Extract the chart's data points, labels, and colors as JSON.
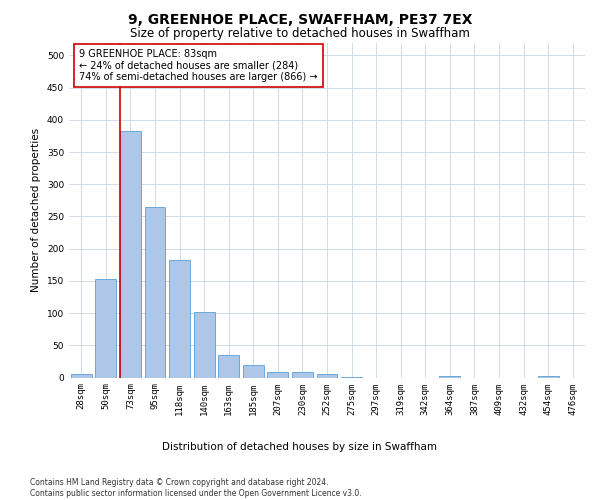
{
  "title": "9, GREENHOE PLACE, SWAFFHAM, PE37 7EX",
  "subtitle": "Size of property relative to detached houses in Swaffham",
  "xlabel": "Distribution of detached houses by size in Swaffham",
  "ylabel": "Number of detached properties",
  "categories": [
    "28sqm",
    "50sqm",
    "73sqm",
    "95sqm",
    "118sqm",
    "140sqm",
    "163sqm",
    "185sqm",
    "207sqm",
    "230sqm",
    "252sqm",
    "275sqm",
    "297sqm",
    "319sqm",
    "342sqm",
    "364sqm",
    "387sqm",
    "409sqm",
    "432sqm",
    "454sqm",
    "476sqm"
  ],
  "values": [
    5,
    153,
    383,
    265,
    183,
    102,
    35,
    19,
    9,
    8,
    5,
    1,
    0,
    0,
    0,
    3,
    0,
    0,
    0,
    3,
    0
  ],
  "bar_color": "#aec6e8",
  "bar_edge_color": "#5a9fd4",
  "vline_color": "#cc0000",
  "annotation_text": "9 GREENHOE PLACE: 83sqm\n← 24% of detached houses are smaller (284)\n74% of semi-detached houses are larger (866) →",
  "annotation_box_color": "#ffffff",
  "annotation_box_edge_color": "#cc0000",
  "ylim": [
    0,
    520
  ],
  "yticks": [
    0,
    50,
    100,
    150,
    200,
    250,
    300,
    350,
    400,
    450,
    500
  ],
  "footer": "Contains HM Land Registry data © Crown copyright and database right 2024.\nContains public sector information licensed under the Open Government Licence v3.0.",
  "background_color": "#ffffff",
  "grid_color": "#c8d8e8",
  "title_fontsize": 10,
  "subtitle_fontsize": 8.5,
  "ylabel_fontsize": 7.5,
  "xlabel_fontsize": 7.5,
  "tick_fontsize": 6.5,
  "annotation_fontsize": 7,
  "footer_fontsize": 5.5
}
